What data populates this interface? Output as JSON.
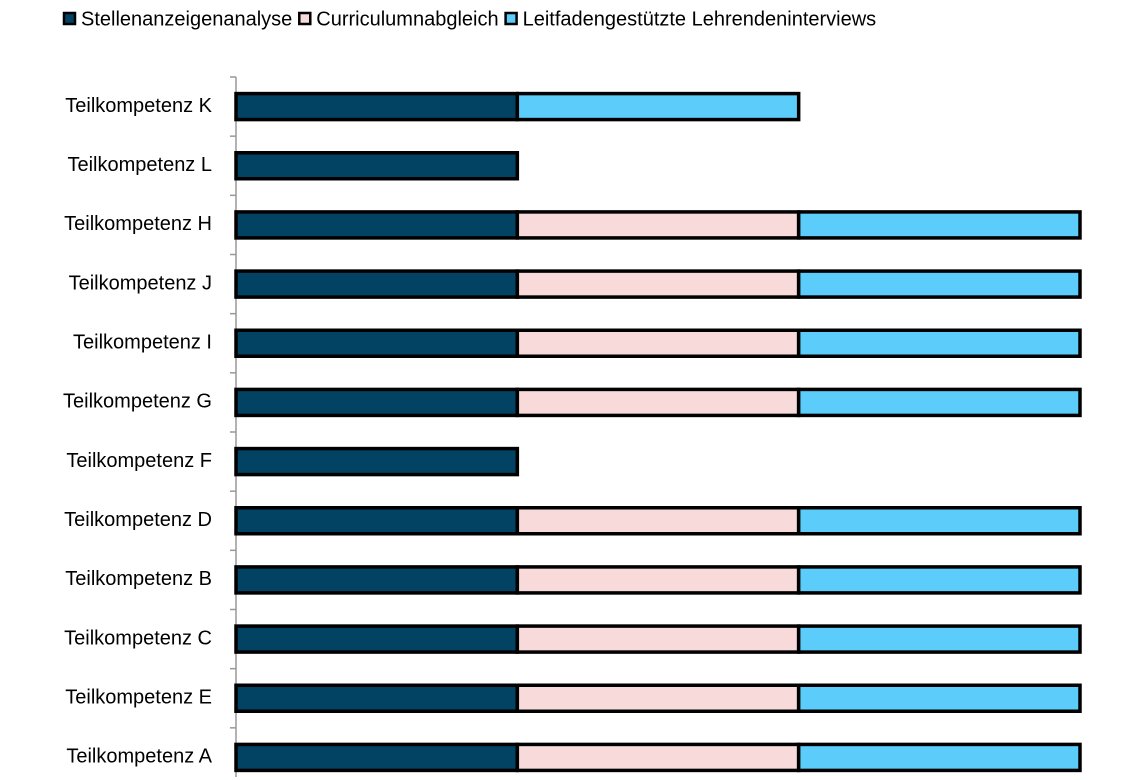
{
  "chart_data": {
    "type": "stacked-bar-horizontal",
    "categories": [
      "Teilkompetenz K",
      "Teilkompetenz L",
      "Teilkompetenz H",
      "Teilkompetenz J",
      "Teilkompetenz I",
      "Teilkompetenz G",
      "Teilkompetenz F",
      "Teilkompetenz D",
      "Teilkompetenz B",
      "Teilkompetenz C",
      "Teilkompetenz E",
      "Teilkompetenz A"
    ],
    "series": [
      {
        "name": "Stellenanzeigenanalyse",
        "color": "#024263",
        "values": [
          1,
          1,
          1,
          1,
          1,
          1,
          1,
          1,
          1,
          1,
          1,
          1
        ]
      },
      {
        "name": "Curriculumnabgleich",
        "color": "#f8dadb",
        "values": [
          0,
          0,
          1,
          1,
          1,
          1,
          0,
          1,
          1,
          1,
          1,
          1
        ]
      },
      {
        "name": "Leitfadengestützte Lehrendeninterviews",
        "color": "#5ccdfb",
        "values": [
          1,
          0,
          1,
          1,
          1,
          1,
          0,
          1,
          1,
          1,
          1,
          1
        ]
      }
    ],
    "legend": "top"
  }
}
